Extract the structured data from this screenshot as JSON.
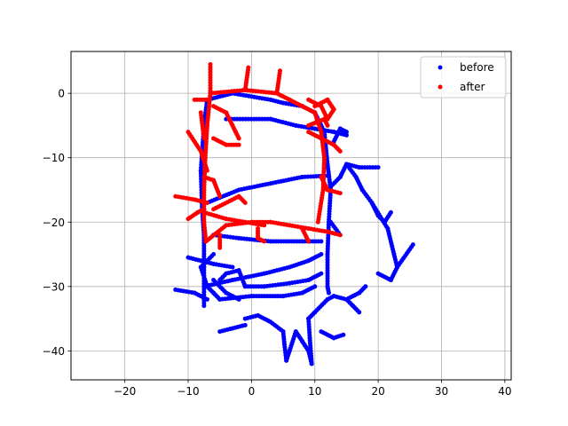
{
  "chart_data": {
    "type": "scatter",
    "title": "",
    "xlabel": "",
    "ylabel": "",
    "xlim": [
      -28.5,
      41
    ],
    "ylim": [
      -44.5,
      6.5
    ],
    "xticks": [
      -20,
      -10,
      0,
      10,
      20,
      30,
      40
    ],
    "yticks": [
      -40,
      -30,
      -20,
      -10,
      0
    ],
    "xtick_labels": [
      "−20",
      "−10",
      "0",
      "10",
      "20",
      "30",
      "40"
    ],
    "ytick_labels": [
      "−40",
      "−30",
      "−20",
      "−10",
      "0"
    ],
    "grid": true,
    "legend": {
      "position": "top-right",
      "entries": [
        "before",
        "after"
      ]
    },
    "series": [
      {
        "name": "before",
        "color": "#0000ff",
        "paths": [
          [
            [
              -3,
              0
            ],
            [
              -7,
              -1
            ],
            [
              -7.5,
              -5
            ],
            [
              -8,
              -12
            ],
            [
              -7.8,
              -18
            ],
            [
              -7.5,
              -22
            ],
            [
              -7.5,
              -27
            ],
            [
              -7.5,
              -33
            ]
          ],
          [
            [
              -3,
              0
            ],
            [
              3,
              -1
            ],
            [
              5,
              -1.5
            ],
            [
              8,
              -2
            ],
            [
              10,
              -3
            ],
            [
              11.5,
              -6
            ],
            [
              12,
              -11
            ],
            [
              12.5,
              -15
            ],
            [
              12.2,
              -20
            ],
            [
              12,
              -25
            ],
            [
              12,
              -30
            ],
            [
              12.2,
              -31
            ]
          ],
          [
            [
              -4,
              -4
            ],
            [
              3,
              -4
            ],
            [
              7,
              -5
            ],
            [
              10,
              -5.5
            ]
          ],
          [
            [
              10,
              -5.5
            ],
            [
              13,
              -6
            ],
            [
              15,
              -6.5
            ]
          ],
          [
            [
              13,
              -7.5
            ],
            [
              14,
              -5.5
            ],
            [
              15,
              -6
            ]
          ],
          [
            [
              -7,
              -17
            ],
            [
              -2,
              -15
            ],
            [
              3,
              -14
            ],
            [
              8,
              -13
            ],
            [
              12,
              -12.8
            ]
          ],
          [
            [
              -6,
              -22
            ],
            [
              -2,
              -22.5
            ],
            [
              3,
              -23
            ],
            [
              8,
              -23
            ],
            [
              11,
              -23
            ]
          ],
          [
            [
              -6,
              -25
            ],
            [
              -8,
              -27
            ],
            [
              -7,
              -30
            ],
            [
              -6,
              -31
            ],
            [
              -5,
              -32
            ],
            [
              0,
              -31.5
            ],
            [
              5,
              -31.5
            ],
            [
              8,
              -31
            ],
            [
              10,
              -30
            ]
          ],
          [
            [
              -7.5,
              -30
            ],
            [
              -3,
              -29
            ],
            [
              2,
              -28
            ],
            [
              6,
              -27
            ],
            [
              9,
              -26
            ],
            [
              11,
              -25
            ]
          ],
          [
            [
              -5,
              -29
            ],
            [
              -4,
              -28
            ],
            [
              -2,
              -27.5
            ],
            [
              -1,
              -30
            ],
            [
              2,
              -30
            ],
            [
              6,
              -29.5
            ],
            [
              9,
              -29
            ],
            [
              11,
              -28
            ]
          ],
          [
            [
              -12,
              -30.5
            ],
            [
              -9,
              -31
            ],
            [
              -7,
              -32
            ]
          ],
          [
            [
              -10,
              -25.5
            ],
            [
              -8,
              -26
            ],
            [
              -6,
              -26.5
            ],
            [
              -3,
              -27
            ]
          ],
          [
            [
              -6,
              -29
            ],
            [
              -4,
              -31
            ],
            [
              -2,
              -32
            ]
          ],
          [
            [
              -1,
              -36
            ],
            [
              -3,
              -36.5
            ],
            [
              -5,
              -37
            ]
          ],
          [
            [
              -1,
              -35
            ],
            [
              1,
              -34.5
            ],
            [
              3,
              -35.5
            ],
            [
              5,
              -37
            ]
          ],
          [
            [
              5,
              -37
            ],
            [
              5.2,
              -39
            ],
            [
              5.5,
              -41.5
            ]
          ],
          [
            [
              5.5,
              -41.5
            ],
            [
              6,
              -40
            ],
            [
              7,
              -37
            ]
          ],
          [
            [
              7,
              -37
            ],
            [
              8,
              -38.5
            ],
            [
              9,
              -40
            ],
            [
              9.5,
              -42
            ]
          ],
          [
            [
              9.5,
              -42
            ],
            [
              9.2,
              -38
            ],
            [
              9,
              -35
            ],
            [
              10,
              -34
            ],
            [
              12,
              -32
            ],
            [
              13,
              -31.5
            ],
            [
              15,
              -32
            ],
            [
              17,
              -31
            ],
            [
              18,
              -30
            ]
          ],
          [
            [
              15,
              -32
            ],
            [
              16,
              -33
            ],
            [
              17,
              -34
            ]
          ],
          [
            [
              11,
              -37
            ],
            [
              13,
              -38
            ],
            [
              14.5,
              -37.5
            ]
          ],
          [
            [
              12,
              -15
            ],
            [
              14,
              -13
            ],
            [
              15,
              -11
            ],
            [
              17,
              -11.5
            ],
            [
              20,
              -11.5
            ]
          ],
          [
            [
              15,
              -11
            ],
            [
              16.5,
              -13
            ],
            [
              17.5,
              -15
            ],
            [
              19,
              -17
            ],
            [
              20,
              -19
            ],
            [
              21,
              -20
            ],
            [
              22,
              -18.5
            ]
          ],
          [
            [
              19,
              -17
            ],
            [
              21.5,
              -21
            ],
            [
              22.5,
              -25
            ],
            [
              23,
              -27
            ],
            [
              25.5,
              -23.5
            ]
          ],
          [
            [
              23,
              -27
            ],
            [
              22,
              -29
            ]
          ],
          [
            [
              22,
              -29
            ],
            [
              20,
              -28
            ]
          ],
          [
            [
              12.5,
              -20
            ],
            [
              14,
              -22
            ]
          ]
        ]
      },
      {
        "name": "after",
        "color": "#ff0000",
        "paths": [
          [
            [
              -6.5,
              0
            ],
            [
              -1,
              0.5
            ],
            [
              4,
              0
            ],
            [
              6,
              -1
            ],
            [
              8,
              -2
            ]
          ],
          [
            [
              8,
              -2
            ],
            [
              10,
              -3
            ],
            [
              11,
              -6
            ],
            [
              11.5,
              -10
            ],
            [
              11.3,
              -15
            ],
            [
              10.5,
              -20
            ]
          ],
          [
            [
              -6.5,
              0
            ],
            [
              -7,
              -5
            ],
            [
              -7.3,
              -10
            ],
            [
              -7.5,
              -15
            ],
            [
              -7.5,
              -20
            ],
            [
              -7.2,
              -23
            ]
          ],
          [
            [
              -7.2,
              -23
            ],
            [
              -4,
              -20.5
            ],
            [
              0,
              -20
            ],
            [
              3,
              -20
            ],
            [
              6,
              -20.5
            ],
            [
              9,
              -21
            ],
            [
              12,
              -21.5
            ],
            [
              14,
              -22
            ]
          ],
          [
            [
              -7.5,
              -18.5
            ],
            [
              -4,
              -19.5
            ],
            [
              -1,
              -20
            ],
            [
              2,
              -20.5
            ]
          ],
          [
            [
              -6.5,
              0
            ],
            [
              -6.5,
              4.5
            ]
          ],
          [
            [
              -1,
              0.5
            ],
            [
              -0.5,
              4
            ]
          ],
          [
            [
              4,
              0
            ],
            [
              4.5,
              3.5
            ]
          ],
          [
            [
              -6,
              -2
            ],
            [
              -4,
              -3
            ],
            [
              -3,
              -5
            ],
            [
              -2,
              -7
            ]
          ],
          [
            [
              -9,
              -1
            ],
            [
              -7,
              -1
            ]
          ],
          [
            [
              -10,
              -6
            ],
            [
              -8,
              -9
            ],
            [
              -7,
              -12
            ]
          ],
          [
            [
              -6,
              -7
            ],
            [
              -4,
              -8
            ],
            [
              -2,
              -8
            ]
          ],
          [
            [
              -6,
              -18
            ],
            [
              -2,
              -16
            ],
            [
              -1,
              -17
            ]
          ],
          [
            [
              -7.5,
              -13
            ],
            [
              -6,
              -13.5
            ],
            [
              -5,
              -16
            ]
          ],
          [
            [
              -12,
              -16
            ],
            [
              -9,
              -16.5
            ],
            [
              -7,
              -17
            ]
          ],
          [
            [
              -10,
              -19.5
            ],
            [
              -8.5,
              -18.5
            ],
            [
              -7.5,
              -18
            ]
          ],
          [
            [
              -5,
              -22
            ],
            [
              -5,
              -24
            ]
          ],
          [
            [
              1,
              -21
            ],
            [
              1,
              -22.5
            ],
            [
              2,
              -23
            ]
          ],
          [
            [
              8,
              -21
            ],
            [
              9,
              -23
            ]
          ],
          [
            [
              -8,
              -3
            ],
            [
              -7.5,
              -7
            ]
          ],
          [
            [
              9,
              -6
            ],
            [
              11,
              -7
            ],
            [
              13,
              -8
            ],
            [
              14,
              -9
            ]
          ],
          [
            [
              9,
              -1
            ],
            [
              11,
              -2
            ],
            [
              12,
              -4
            ]
          ],
          [
            [
              10,
              -2
            ],
            [
              12,
              -1
            ],
            [
              13,
              -2.5
            ],
            [
              12,
              -4
            ]
          ],
          [
            [
              11,
              -13
            ],
            [
              12,
              -15
            ],
            [
              14,
              -15.5
            ]
          ],
          [
            [
              9,
              -5
            ],
            [
              11.5,
              -4
            ],
            [
              12,
              -5
            ]
          ]
        ]
      }
    ]
  }
}
